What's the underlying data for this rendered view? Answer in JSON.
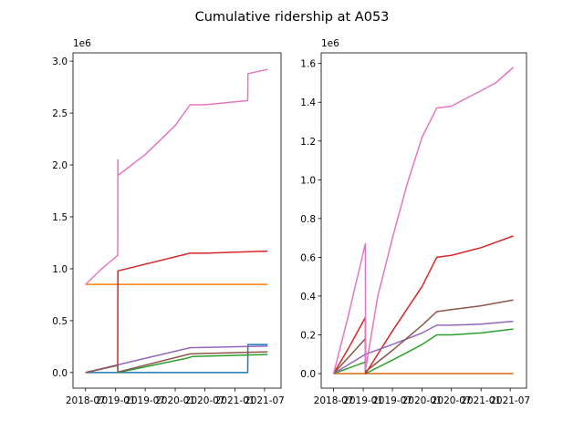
{
  "figure": {
    "title": "Cumulative ridership at A053"
  },
  "chart_data": [
    {
      "type": "line",
      "title": "",
      "xlabel": "",
      "ylabel": "",
      "x_type": "date",
      "xlim": [
        "2018-04-15",
        "2021-10-10"
      ],
      "ylim": [
        -0.15,
        3.08
      ],
      "y_offset_text": "1e6",
      "x_ticks": [
        "2018-07-01",
        "2019-01-01",
        "2019-07-01",
        "2020-01-01",
        "2020-07-01",
        "2021-01-01",
        "2021-07-01"
      ],
      "x_tick_labels": [
        "2018-07",
        "2019-01",
        "2019-07",
        "2020-01",
        "2020-07",
        "2021-01",
        "2021-07"
      ],
      "y_ticks": [
        0.0,
        0.5,
        1.0,
        1.5,
        2.0,
        2.5,
        3.0
      ],
      "y_tick_labels": [
        "0.0",
        "0.5",
        "1.0",
        "1.5",
        "2.0",
        "2.5",
        "3.0"
      ],
      "grid": false,
      "legend": "none",
      "series": [
        {
          "color": "#1f77b4",
          "x": [
            "2018-07-01",
            "2019-01-15",
            "2021-03-20",
            "2021-03-21",
            "2021-07-20"
          ],
          "y": [
            0,
            0,
            0,
            0.27,
            0.27
          ]
        },
        {
          "color": "#ff7f0e",
          "x": [
            "2018-07-01",
            "2021-07-20"
          ],
          "y": [
            0.85,
            0.85
          ]
        },
        {
          "color": "#2ca02c",
          "x": [
            "2018-07-01",
            "2019-01-14",
            "2019-01-15",
            "2020-03-15",
            "2020-04-15",
            "2021-07-20"
          ],
          "y": [
            0,
            0.07,
            0,
            0.14,
            0.155,
            0.175
          ]
        },
        {
          "color": "#d62728",
          "x": [
            "2018-07-01",
            "2019-01-14",
            "2019-01-15",
            "2020-04-01",
            "2020-07-01",
            "2021-07-20"
          ],
          "y": [
            0,
            0.07,
            0.98,
            1.15,
            1.15,
            1.17
          ]
        },
        {
          "color": "#9467bd",
          "x": [
            "2018-07-01",
            "2019-01-15",
            "2020-04-01",
            "2021-07-20"
          ],
          "y": [
            0,
            0.075,
            0.24,
            0.255
          ]
        },
        {
          "color": "#8c564b",
          "x": [
            "2018-07-01",
            "2019-01-14",
            "2019-01-15",
            "2020-04-01",
            "2021-07-20"
          ],
          "y": [
            0,
            0.07,
            0.005,
            0.18,
            0.2
          ]
        },
        {
          "color": "#e377c2",
          "x": [
            "2018-07-01",
            "2018-10-01",
            "2019-01-14",
            "2019-01-15",
            "2019-01-16",
            "2019-07-01",
            "2020-01-01",
            "2020-04-01",
            "2020-07-01",
            "2021-03-20",
            "2021-03-21",
            "2021-07-20"
          ],
          "y": [
            0.85,
            0.99,
            1.13,
            2.05,
            1.9,
            2.1,
            2.38,
            2.58,
            2.58,
            2.62,
            2.88,
            2.92
          ]
        }
      ]
    },
    {
      "type": "line",
      "title": "",
      "xlabel": "",
      "ylabel": "",
      "x_type": "date",
      "xlim": [
        "2018-04-15",
        "2021-10-10"
      ],
      "ylim": [
        -0.075,
        1.655
      ],
      "y_offset_text": "1e6",
      "x_ticks": [
        "2018-07-01",
        "2019-01-01",
        "2019-07-01",
        "2020-01-01",
        "2020-07-01",
        "2021-01-01",
        "2021-07-01"
      ],
      "x_tick_labels": [
        "2018-07",
        "2019-01",
        "2019-07",
        "2020-01",
        "2020-07",
        "2021-01",
        "2021-07"
      ],
      "y_ticks": [
        0.0,
        0.2,
        0.4,
        0.6,
        0.8,
        1.0,
        1.2,
        1.4,
        1.6
      ],
      "y_tick_labels": [
        "0.0",
        "0.2",
        "0.4",
        "0.6",
        "0.8",
        "1.0",
        "1.2",
        "1.4",
        "1.6"
      ],
      "grid": false,
      "legend": "none",
      "series": [
        {
          "color": "#1f77b4",
          "x": [
            "2018-07-01",
            "2021-07-20"
          ],
          "y": [
            0,
            0
          ]
        },
        {
          "color": "#ff7f0e",
          "x": [
            "2018-07-01",
            "2021-07-20"
          ],
          "y": [
            0,
            0
          ]
        },
        {
          "color": "#2ca02c",
          "x": [
            "2018-07-01",
            "2019-01-14",
            "2019-01-15",
            "2019-07-01",
            "2020-01-01",
            "2020-04-01",
            "2020-07-01",
            "2021-01-01",
            "2021-07-20"
          ],
          "y": [
            0,
            0.06,
            0,
            0.07,
            0.15,
            0.2,
            0.2,
            0.21,
            0.23
          ]
        },
        {
          "color": "#d62728",
          "x": [
            "2018-07-01",
            "2018-10-01",
            "2019-01-14",
            "2019-01-15",
            "2019-07-01",
            "2020-01-01",
            "2020-04-01",
            "2020-07-01",
            "2021-01-01",
            "2021-07-20"
          ],
          "y": [
            0,
            0.13,
            0.29,
            0,
            0.22,
            0.45,
            0.6,
            0.61,
            0.65,
            0.71
          ]
        },
        {
          "color": "#9467bd",
          "x": [
            "2018-07-01",
            "2019-01-15",
            "2019-07-01",
            "2020-01-01",
            "2020-04-01",
            "2020-07-01",
            "2021-01-01",
            "2021-07-20"
          ],
          "y": [
            0,
            0.1,
            0.15,
            0.21,
            0.25,
            0.25,
            0.255,
            0.27
          ]
        },
        {
          "color": "#8c564b",
          "x": [
            "2018-07-01",
            "2019-01-14",
            "2019-01-15",
            "2019-07-01",
            "2020-01-01",
            "2020-04-01",
            "2020-07-01",
            "2021-01-01",
            "2021-07-20"
          ],
          "y": [
            0,
            0.18,
            0.01,
            0.12,
            0.25,
            0.32,
            0.33,
            0.35,
            0.38
          ]
        },
        {
          "color": "#e377c2",
          "x": [
            "2018-07-01",
            "2018-10-01",
            "2019-01-14",
            "2019-01-15",
            "2019-04-01",
            "2019-07-01",
            "2019-10-01",
            "2020-01-01",
            "2020-04-01",
            "2020-07-01",
            "2020-10-01",
            "2021-01-01",
            "2021-04-01",
            "2021-07-20"
          ],
          "y": [
            0,
            0.3,
            0.67,
            0.02,
            0.4,
            0.7,
            0.98,
            1.22,
            1.37,
            1.38,
            1.42,
            1.46,
            1.5,
            1.58
          ]
        }
      ]
    }
  ]
}
